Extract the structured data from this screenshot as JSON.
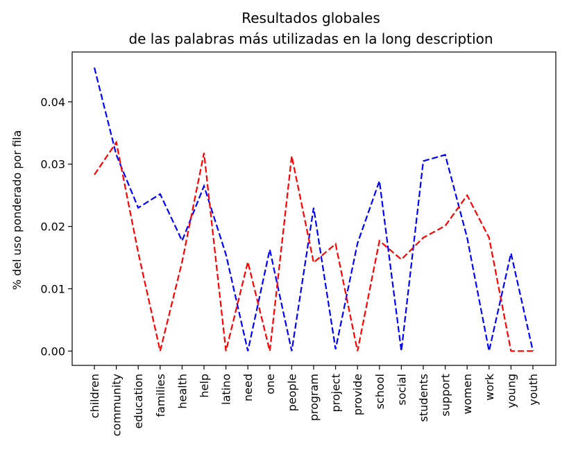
{
  "chart_data": {
    "type": "line",
    "title_lines": [
      "Resultados globales",
      "de las palabras más utilizadas en la long description"
    ],
    "xlabel": "",
    "ylabel": "% del uso ponderado por fila",
    "ylim": [
      -0.0023,
      0.048
    ],
    "yticks": [
      0.0,
      0.01,
      0.02,
      0.03,
      0.04
    ],
    "ytick_labels": [
      "0.00",
      "0.01",
      "0.02",
      "0.03",
      "0.04"
    ],
    "grid": false,
    "categories": [
      "children",
      "community",
      "education",
      "families",
      "health",
      "help",
      "latino",
      "need",
      "one",
      "people",
      "program",
      "project",
      "provide",
      "school",
      "social",
      "students",
      "support",
      "women",
      "work",
      "young",
      "youth"
    ],
    "series": [
      {
        "color": "#0000ff",
        "dash": "dashed",
        "values": [
          0.0455,
          0.0315,
          0.023,
          0.0252,
          0.0177,
          0.0265,
          0.0155,
          0.0,
          0.0163,
          0.0,
          0.023,
          0.0003,
          0.0173,
          0.0273,
          0.0,
          0.0305,
          0.0315,
          0.0182,
          0.0,
          0.0157,
          0.0
        ]
      },
      {
        "color": "#ff0000",
        "dash": "dashed",
        "values": [
          0.0283,
          0.0335,
          0.0158,
          0.0,
          0.0143,
          0.0318,
          0.0,
          0.0143,
          0.0,
          0.0313,
          0.0142,
          0.0172,
          0.0,
          0.0177,
          0.0147,
          0.0182,
          0.0201,
          0.025,
          0.0182,
          0.0,
          0.0
        ]
      }
    ]
  }
}
